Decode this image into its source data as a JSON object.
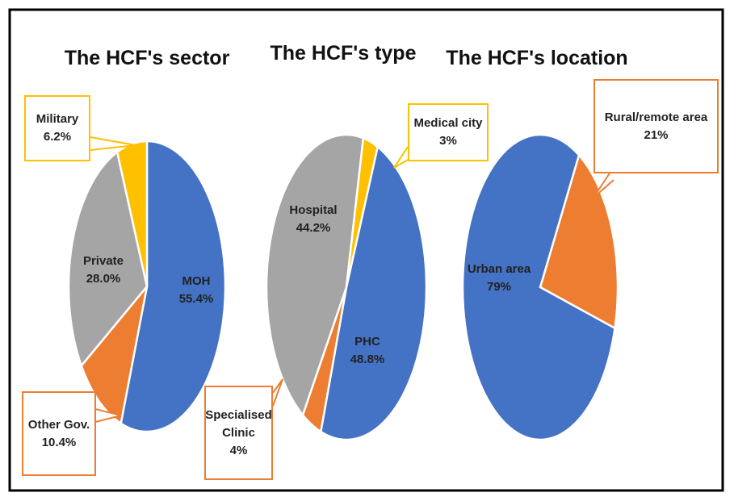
{
  "chart_data": [
    {
      "type": "pie",
      "title": "The HCF's sector",
      "categories": [
        "MOH",
        "Other Gov.",
        "Private",
        "Military"
      ],
      "values": [
        55.4,
        10.4,
        28.0,
        6.2
      ],
      "value_labels": [
        "55.4%",
        "10.4%",
        "28.0%",
        "6.2%"
      ],
      "colors": [
        "#4472c4",
        "#ed7d31",
        "#a5a5a5",
        "#ffc000"
      ]
    },
    {
      "type": "pie",
      "title": "The HCF's type",
      "categories": [
        "PHC",
        "Specialised Clinic",
        "Hospital",
        "Medical city"
      ],
      "values": [
        48.8,
        4,
        44.2,
        3
      ],
      "value_labels": [
        "48.8%",
        "4%",
        "44.2%",
        "3%"
      ],
      "colors": [
        "#4472c4",
        "#ed7d31",
        "#a5a5a5",
        "#ffc000"
      ]
    },
    {
      "type": "pie",
      "title": "The HCF's location",
      "categories": [
        "Rural/remote area",
        "Urban area"
      ],
      "values": [
        21,
        79
      ],
      "value_labels": [
        "21%",
        "79%"
      ],
      "colors": [
        "#ed7d31",
        "#4472c4"
      ]
    }
  ]
}
